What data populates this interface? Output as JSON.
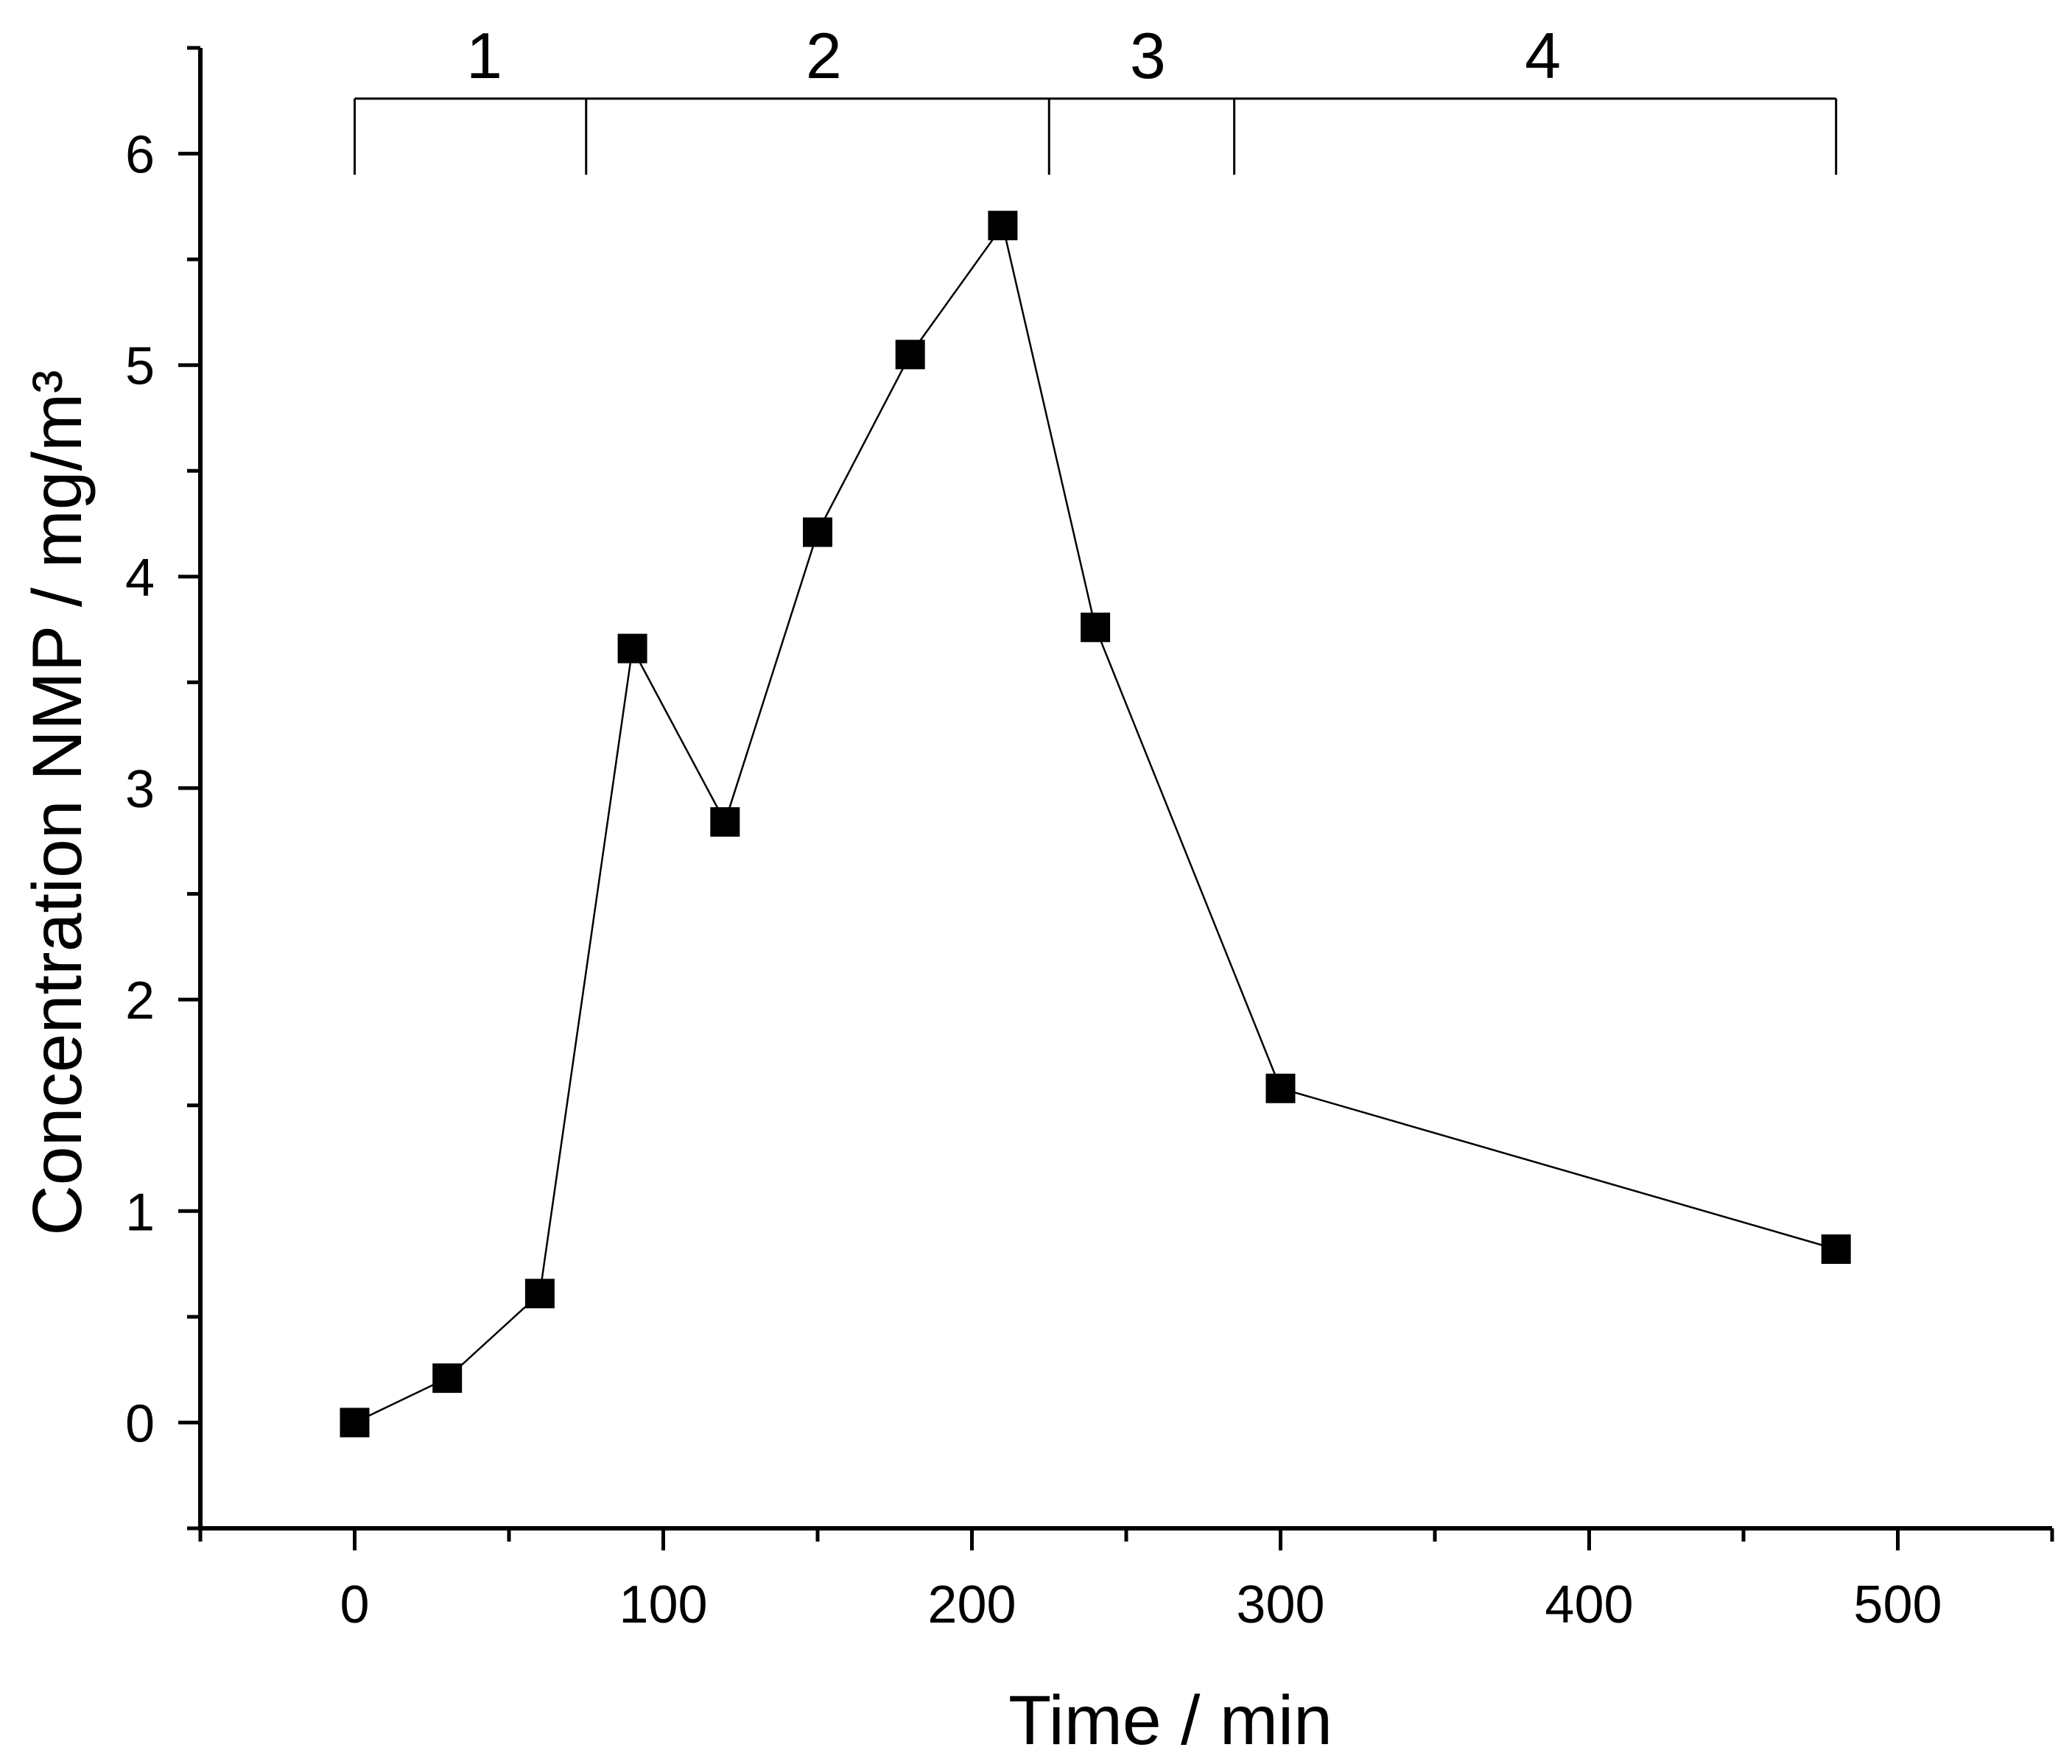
{
  "chart_data": {
    "type": "scatter",
    "mode": "lines+markers",
    "marker": "square",
    "colors": {
      "series": "#000000",
      "axis": "#000000",
      "background": "#ffffff"
    },
    "xlabel": "Time / min",
    "ylabel": "Concentration NMP / mg/m³",
    "xlim": [
      -50,
      550
    ],
    "ylim": [
      -0.5,
      6.5
    ],
    "x_ticks": [
      0,
      100,
      200,
      300,
      400,
      500
    ],
    "x_tick_labels": [
      "0",
      "100",
      "200",
      "300",
      "400",
      "500"
    ],
    "x_minor_step": 50,
    "y_ticks": [
      0,
      1,
      2,
      3,
      4,
      5,
      6
    ],
    "y_tick_labels": [
      "0",
      "1",
      "2",
      "3",
      "4",
      "5",
      "6"
    ],
    "y_minor_step": 0.5,
    "grid": false,
    "series": [
      {
        "x": [
          0,
          30,
          60,
          90,
          120,
          150,
          180,
          210,
          240,
          300,
          480
        ],
        "y": [
          0.0,
          0.21,
          0.61,
          3.66,
          2.84,
          4.21,
          5.05,
          5.66,
          3.76,
          1.58,
          0.82
        ]
      }
    ],
    "phases": {
      "y": 6.26,
      "drop_to": 5.9,
      "boundaries": [
        0,
        75,
        225,
        285,
        480
      ],
      "labels": [
        "1",
        "2",
        "3",
        "4"
      ],
      "label_x": [
        42,
        152,
        257,
        385
      ]
    }
  }
}
